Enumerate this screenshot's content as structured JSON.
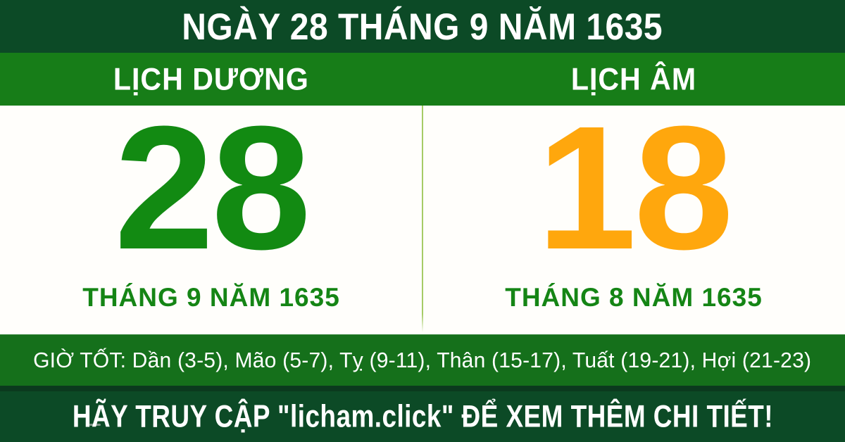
{
  "banner": {
    "title": "NGÀY 28 THÁNG 9 NĂM 1635",
    "solar": {
      "label": "LỊCH DƯƠNG",
      "day": "28",
      "month_year": "THÁNG 9 NĂM 1635"
    },
    "lunar": {
      "label": "LỊCH ÂM",
      "day": "18",
      "month_year": "THÁNG 8 NĂM 1635"
    },
    "good_hours": "GIỜ TỐT: Dần (3-5), Mão (5-7), Tỵ (9-11), Thân (15-17), Tuất (19-21), Hợi (21-23)",
    "footer": "HÃY TRUY CẬP \"licham.click\" ĐỂ XEM THÊM CHI TIẾT!"
  },
  "colors": {
    "dark-green": "#0c4a26",
    "band-green": "#177d18",
    "hours-green": "#15701b",
    "separator-green": "#0b3a1e",
    "day-green": "#128a12",
    "subtitle-green": "#158515",
    "day-orange": "#ffa70d",
    "divider-light-green": "#a6cb67",
    "panel-white": "#fffefb",
    "text-white": "#ffffff"
  }
}
